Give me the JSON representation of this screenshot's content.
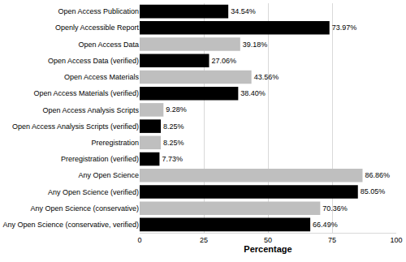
{
  "chart_data": {
    "type": "bar",
    "orientation": "horizontal",
    "x_label": "Percentage",
    "categories": [
      "Open Access Publication",
      "Openly Accessible Report",
      "Open Access Data",
      "Open Access Data (verified)",
      "Open Access Materials",
      "Open Access Materials (verified)",
      "Open Access Analysis Scripts",
      "Open Access Analysis Scripts (verified)",
      "Preregistration",
      "Preregistration (verified)",
      "Any Open Science",
      "Any Open Science (verified)",
      "Any Open Science (conservative)",
      "Any Open Science (conservative, verified)"
    ],
    "values": [
      34.54,
      73.97,
      39.18,
      27.06,
      43.56,
      38.4,
      9.28,
      8.25,
      8.25,
      7.73,
      86.86,
      85.05,
      70.36,
      66.49
    ],
    "value_labels": [
      "34.54%",
      "73.97%",
      "39.18%",
      "27.06%",
      "43.56%",
      "38.40%",
      "9.28%",
      "8.25%",
      "8.25%",
      "7.73%",
      "86.86%",
      "85.05%",
      "70.36%",
      "66.49%"
    ],
    "colors": [
      "#000000",
      "#000000",
      "#bfbfbf",
      "#000000",
      "#bfbfbf",
      "#000000",
      "#bfbfbf",
      "#000000",
      "#bfbfbf",
      "#000000",
      "#bfbfbf",
      "#000000",
      "#bfbfbf",
      "#000000"
    ],
    "xlim": [
      0,
      100
    ],
    "xticks": [
      0,
      25,
      50,
      75,
      100
    ],
    "grid": true,
    "data_labels": true
  }
}
